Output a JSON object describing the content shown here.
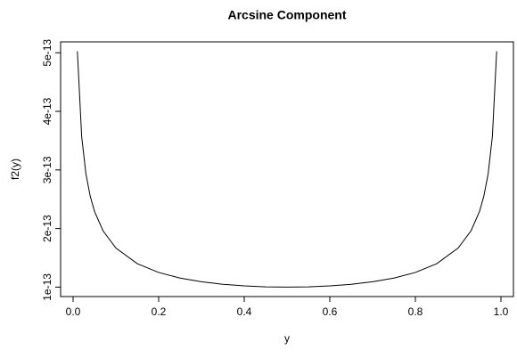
{
  "chart_data": {
    "type": "line",
    "title": "Arcsine Component",
    "x_label": "y",
    "y_label": "f2(y)",
    "x": [
      0.01,
      0.02,
      0.03,
      0.04,
      0.05,
      0.07,
      0.1,
      0.15,
      0.2,
      0.25,
      0.3,
      0.35,
      0.4,
      0.45,
      0.5,
      0.55,
      0.6,
      0.65,
      0.7,
      0.75,
      0.8,
      0.85,
      0.9,
      0.93,
      0.95,
      0.96,
      0.97,
      0.98,
      0.99
    ],
    "series": [
      {
        "color": "#000000",
        "values": [
          5.025e-13,
          3.571e-13,
          2.931e-13,
          2.552e-13,
          2.294e-13,
          1.96e-13,
          1.667e-13,
          1.4e-13,
          1.25e-13,
          1.155e-13,
          1.091e-13,
          1.048e-13,
          1.021e-13,
          1.005e-13,
          1e-13,
          1.005e-13,
          1.021e-13,
          1.048e-13,
          1.091e-13,
          1.155e-13,
          1.25e-13,
          1.4e-13,
          1.667e-13,
          1.96e-13,
          2.294e-13,
          2.552e-13,
          2.931e-13,
          3.571e-13,
          5.025e-13
        ]
      }
    ],
    "xlim": [
      -0.0292,
      1.0292
    ],
    "ylim": [
      8.39e-14,
      5.186e-13
    ],
    "xticks": [
      {
        "value": 0,
        "label": "0.0"
      },
      0.2,
      0.4,
      0.6,
      0.8,
      {
        "value": 1,
        "label": "1.0"
      }
    ],
    "yticks": [
      {
        "value": 1e-13,
        "label": "1e-13"
      },
      {
        "value": 2e-13,
        "label": "2e-13"
      },
      {
        "value": 3e-13,
        "label": "3e-13"
      },
      {
        "value": 4e-13,
        "label": "4e-13"
      },
      {
        "value": 5e-13,
        "label": "5e-13"
      }
    ]
  }
}
